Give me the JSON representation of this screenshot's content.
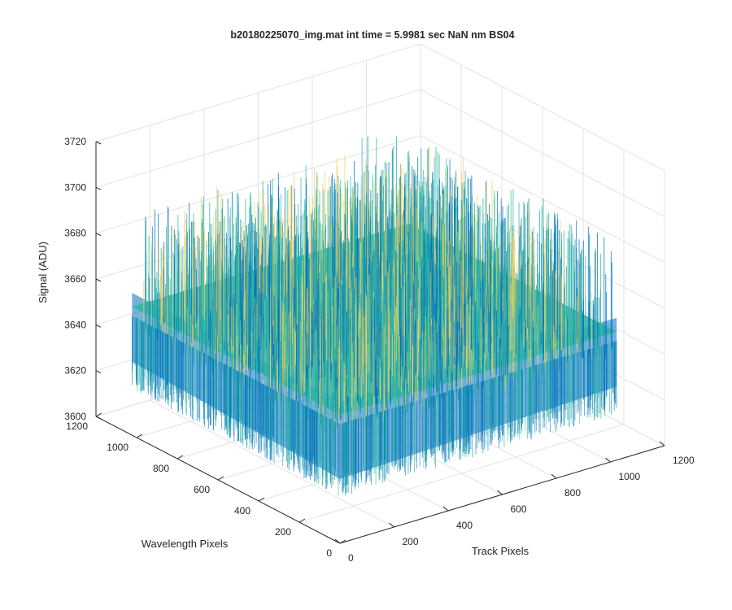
{
  "figure": {
    "title": "b20180225070_img.mat int time = 5.9981 sec  NaN nm BS04"
  },
  "chart_data": {
    "type": "surface",
    "title": "b20180225070_img.mat int time = 5.9981 sec  NaN nm BS04",
    "xlabel": "Track Pixels",
    "ylabel": "Wavelength Pixels",
    "zlabel": "Signal (ADU)",
    "xlim": [
      0,
      1200
    ],
    "ylim": [
      0,
      1200
    ],
    "zlim": [
      3600,
      3720
    ],
    "xticks": [
      "0",
      "200",
      "400",
      "600",
      "800",
      "1000",
      "1200"
    ],
    "yticks": [
      "0",
      "200",
      "400",
      "600",
      "800",
      "1000",
      "1200"
    ],
    "zticks": [
      "3600",
      "3620",
      "3640",
      "3660",
      "3680",
      "3700",
      "3720"
    ],
    "data_extent": {
      "x": [
        1,
        1024
      ],
      "y": [
        1,
        1024
      ]
    },
    "signal_mean": 3656,
    "signal_range": [
      3620,
      3700
    ],
    "grid": true,
    "colormap": "parula",
    "colors": {
      "low": "#0072bd",
      "mid": "#2ab3a5",
      "high": "#f0d060"
    }
  }
}
